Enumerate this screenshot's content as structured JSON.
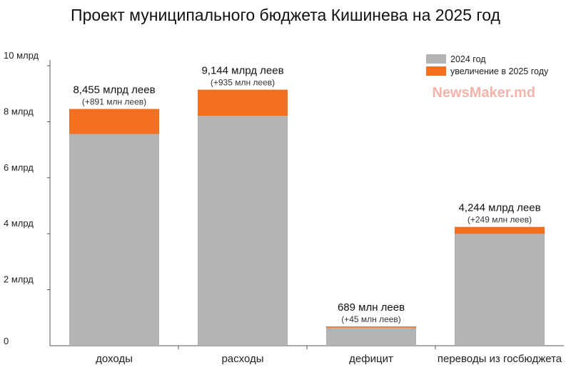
{
  "chart_data": {
    "type": "bar",
    "stacked": true,
    "title": "Проект муниципального бюджета Кишинева на 2025 год",
    "categories": [
      "доходы",
      "расходы",
      "дефицит",
      "переводы из госбюджета"
    ],
    "series": [
      {
        "name": "2024 год",
        "values": [
          7.564,
          8.209,
          0.644,
          3.995
        ]
      },
      {
        "name": "увеличение в 2025 году",
        "values": [
          0.891,
          0.935,
          0.045,
          0.249
        ]
      }
    ],
    "value_labels": [
      "8,455 млрд леев",
      "9,144 млрд леев",
      "689 млн леев",
      "4,244 млрд леев"
    ],
    "increase_labels": [
      "(+891 млн леев)",
      "(+935 млн леев)",
      "(+45 млн леев)",
      "(+249 млн леев)"
    ],
    "y_ticks": [
      {
        "value": 0,
        "label": "0"
      },
      {
        "value": 2,
        "label": "2 млрд"
      },
      {
        "value": 4,
        "label": "4 млрд"
      },
      {
        "value": 6,
        "label": "6 млрд"
      },
      {
        "value": 8,
        "label": "8 млрд"
      },
      {
        "value": 10,
        "label": "10 млрд"
      }
    ],
    "ylim": [
      0,
      10
    ],
    "grid": false,
    "legend": "top-right",
    "colors": {
      "base": "#b3b3b3",
      "increase": "#f37021",
      "axis": "#555555"
    }
  },
  "watermark": "NewsMaker.md",
  "watermark_color": "#f5b3ab"
}
